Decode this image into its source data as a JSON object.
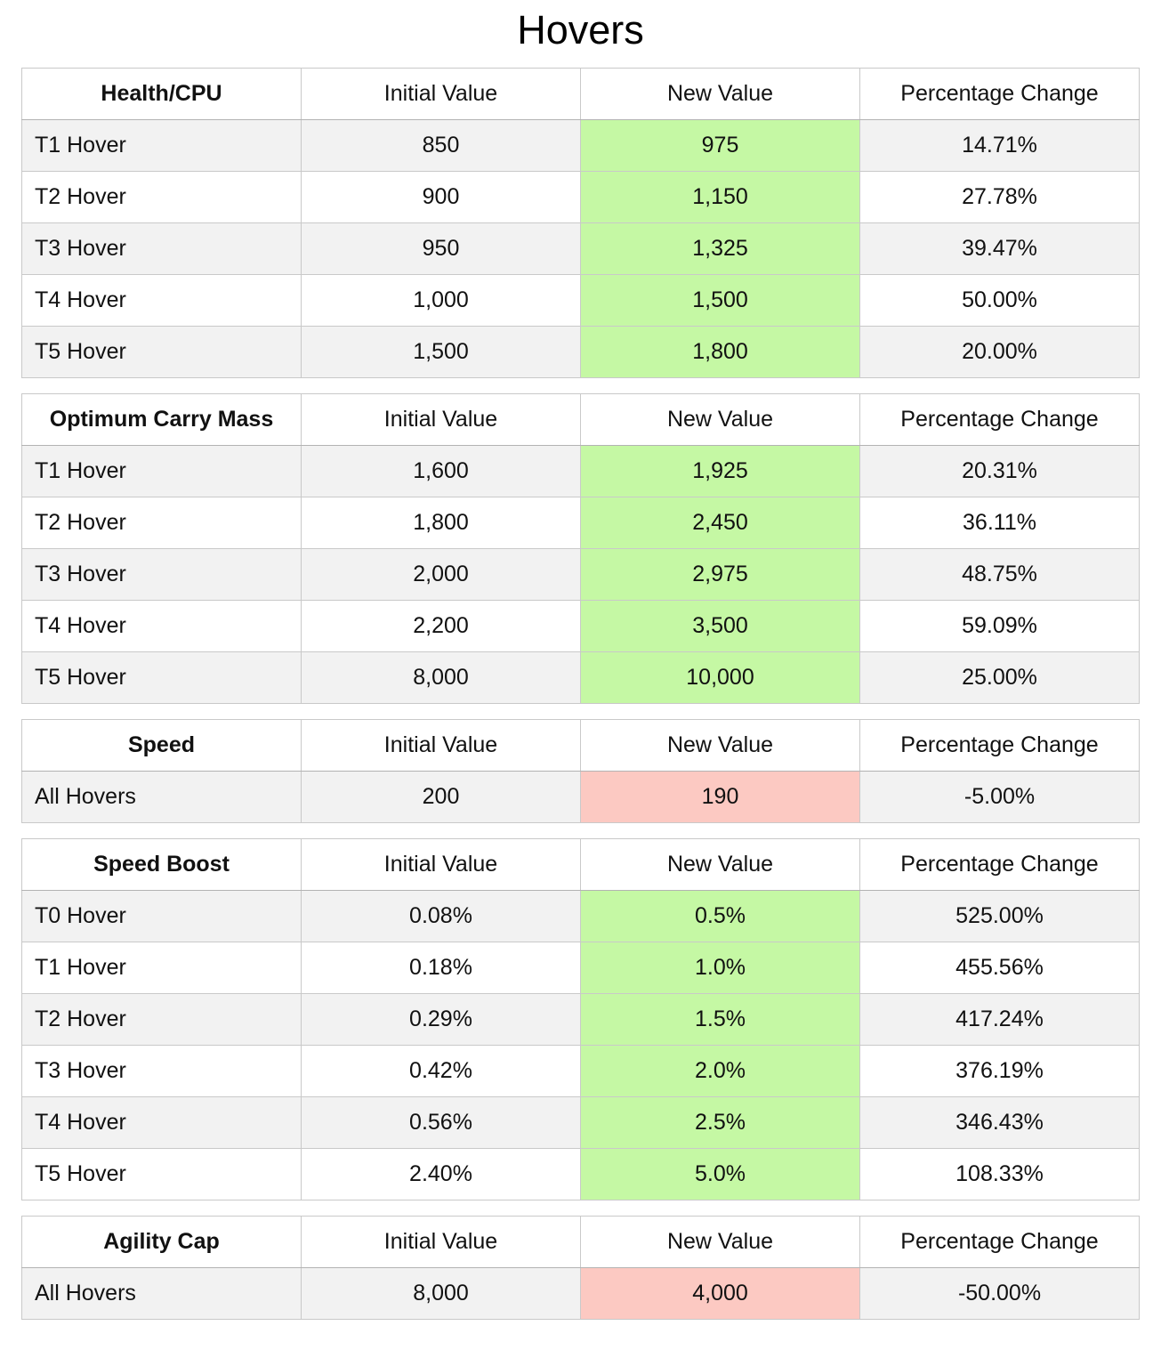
{
  "page": {
    "title": "Hovers"
  },
  "columns": [
    "Initial Value",
    "New Value",
    "Percentage Change"
  ],
  "colors": {
    "increase_bg": "#c5f8a4",
    "decrease_bg": "#fcc9c2",
    "stripe_bg": "#f2f2f2",
    "border": "#c9c9c9"
  },
  "tables": [
    {
      "name": "Health/CPU",
      "rows": [
        {
          "label": "T1 Hover",
          "initial": "850",
          "new": "975",
          "change": "14.71%",
          "direction": "up"
        },
        {
          "label": "T2 Hover",
          "initial": "900",
          "new": "1,150",
          "change": "27.78%",
          "direction": "up"
        },
        {
          "label": "T3 Hover",
          "initial": "950",
          "new": "1,325",
          "change": "39.47%",
          "direction": "up"
        },
        {
          "label": "T4 Hover",
          "initial": "1,000",
          "new": "1,500",
          "change": "50.00%",
          "direction": "up"
        },
        {
          "label": "T5 Hover",
          "initial": "1,500",
          "new": "1,800",
          "change": "20.00%",
          "direction": "up"
        }
      ]
    },
    {
      "name": "Optimum Carry Mass",
      "rows": [
        {
          "label": "T1 Hover",
          "initial": "1,600",
          "new": "1,925",
          "change": "20.31%",
          "direction": "up"
        },
        {
          "label": "T2 Hover",
          "initial": "1,800",
          "new": "2,450",
          "change": "36.11%",
          "direction": "up"
        },
        {
          "label": "T3 Hover",
          "initial": "2,000",
          "new": "2,975",
          "change": "48.75%",
          "direction": "up"
        },
        {
          "label": "T4 Hover",
          "initial": "2,200",
          "new": "3,500",
          "change": "59.09%",
          "direction": "up"
        },
        {
          "label": "T5 Hover",
          "initial": "8,000",
          "new": "10,000",
          "change": "25.00%",
          "direction": "up"
        }
      ]
    },
    {
      "name": "Speed",
      "rows": [
        {
          "label": "All Hovers",
          "initial": "200",
          "new": "190",
          "change": "-5.00%",
          "direction": "down"
        }
      ]
    },
    {
      "name": "Speed Boost",
      "rows": [
        {
          "label": "T0 Hover",
          "initial": "0.08%",
          "new": "0.5%",
          "change": "525.00%",
          "direction": "up"
        },
        {
          "label": "T1 Hover",
          "initial": "0.18%",
          "new": "1.0%",
          "change": "455.56%",
          "direction": "up"
        },
        {
          "label": "T2 Hover",
          "initial": "0.29%",
          "new": "1.5%",
          "change": "417.24%",
          "direction": "up"
        },
        {
          "label": "T3 Hover",
          "initial": "0.42%",
          "new": "2.0%",
          "change": "376.19%",
          "direction": "up"
        },
        {
          "label": "T4 Hover",
          "initial": "0.56%",
          "new": "2.5%",
          "change": "346.43%",
          "direction": "up"
        },
        {
          "label": "T5 Hover",
          "initial": "2.40%",
          "new": "5.0%",
          "change": "108.33%",
          "direction": "up"
        }
      ]
    },
    {
      "name": "Agility Cap",
      "rows": [
        {
          "label": "All Hovers",
          "initial": "8,000",
          "new": "4,000",
          "change": "-50.00%",
          "direction": "down"
        }
      ]
    }
  ]
}
